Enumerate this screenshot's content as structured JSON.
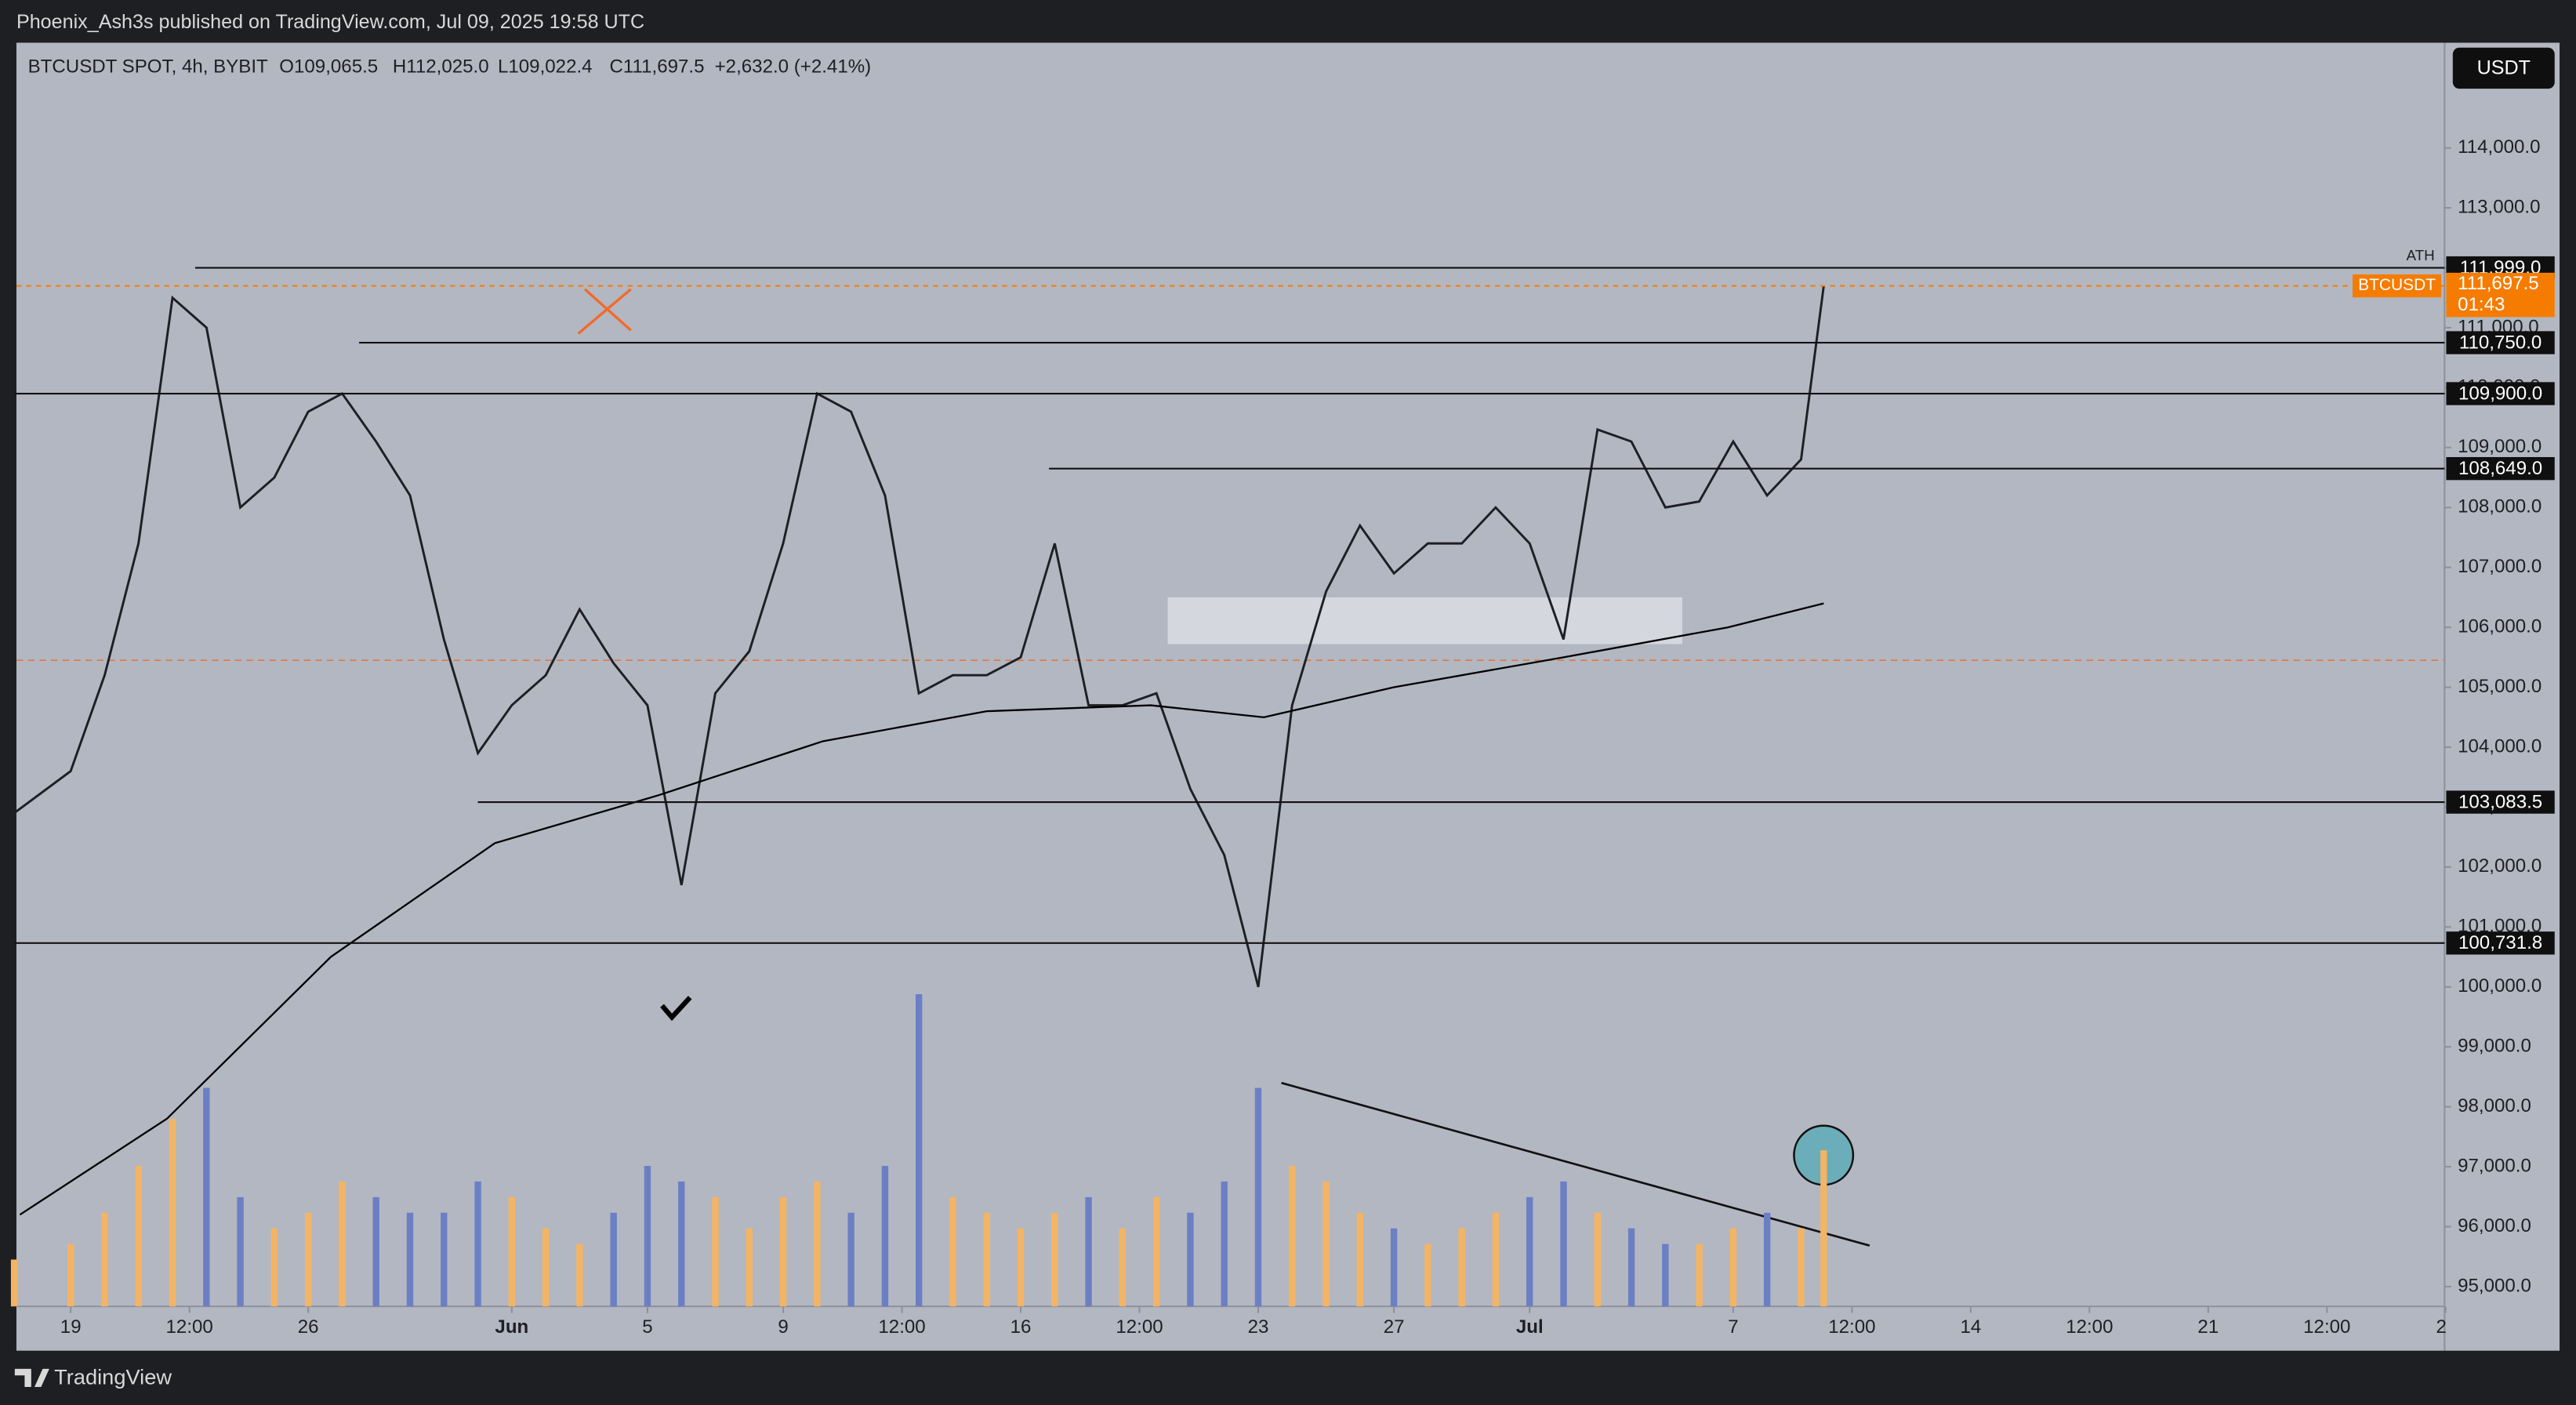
{
  "header": {
    "published": "Phoenix_Ash3s published on TradingView.com, Jul 09, 2025 19:58 UTC"
  },
  "footer": {
    "brand": "TradingView"
  },
  "chart_data": {
    "type": "line",
    "legend": {
      "symbol": "BTCUSDT SPOT, 4h, BYBIT",
      "open": "O109,065.5",
      "high": "H112,025.0",
      "low": "L109,022.4",
      "close": "C111,697.5",
      "change": "+2,632.0 (+2.41%)"
    },
    "currency": "USDT",
    "xlim": [
      -9.6,
      419.8
    ],
    "xticks": [
      {
        "value": 0,
        "label": "19"
      },
      {
        "value": 21,
        "label": "12:00"
      },
      {
        "value": 42,
        "label": "26"
      },
      {
        "value": 78,
        "label": "Jun"
      },
      {
        "value": 102,
        "label": "5"
      },
      {
        "value": 126,
        "label": "9"
      },
      {
        "value": 147,
        "label": "12:00"
      },
      {
        "value": 168,
        "label": "16"
      },
      {
        "value": 189,
        "label": "12:00"
      },
      {
        "value": 210,
        "label": "23"
      },
      {
        "value": 234,
        "label": "27"
      },
      {
        "value": 258,
        "label": "Jul"
      },
      {
        "value": 294,
        "label": "7"
      },
      {
        "value": 315,
        "label": "12:00"
      },
      {
        "value": 336,
        "label": "14"
      },
      {
        "value": 357,
        "label": "12:00"
      },
      {
        "value": 378,
        "label": "21"
      },
      {
        "value": 399,
        "label": "12:00"
      },
      {
        "value": 420,
        "label": "2"
      }
    ],
    "ylim": [
      94669,
      115755
    ],
    "yticks": [
      {
        "value": 95000,
        "label": "95,000.0"
      },
      {
        "value": 96000,
        "label": "96,000.0"
      },
      {
        "value": 97000,
        "label": "97,000.0"
      },
      {
        "value": 98000,
        "label": "98,000.0"
      },
      {
        "value": 99000,
        "label": "99,000.0"
      },
      {
        "value": 100000,
        "label": "100,000.0"
      },
      {
        "value": 101000,
        "label": "101,000.0"
      },
      {
        "value": 102000,
        "label": "102,000.0"
      },
      {
        "value": 103000,
        "label": "103,000.0"
      },
      {
        "value": 104000,
        "label": "104,000.0"
      },
      {
        "value": 105000,
        "label": "105,000.0"
      },
      {
        "value": 106000,
        "label": "106,000.0"
      },
      {
        "value": 107000,
        "label": "107,000.0"
      },
      {
        "value": 108000,
        "label": "108,000.0"
      },
      {
        "value": 109000,
        "label": "109,000.0"
      },
      {
        "value": 110000,
        "label": "110,000.0"
      },
      {
        "value": 111000,
        "label": "111,000.0"
      },
      {
        "value": 112000,
        "label": "112,000.0"
      },
      {
        "value": 113000,
        "label": "113,000.0"
      },
      {
        "value": 114000,
        "label": "114,000.0"
      }
    ],
    "series": [
      {
        "color": "#1e1f24",
        "x": [
          -10,
          0,
          6,
          12,
          18,
          24,
          30,
          36,
          42,
          48,
          54,
          60,
          66,
          72,
          78,
          84,
          90,
          96,
          102,
          108,
          114,
          120,
          126,
          132,
          138,
          144,
          150,
          156,
          162,
          168,
          174,
          180,
          186,
          192,
          198,
          204,
          210,
          216,
          222,
          228,
          234,
          240,
          246,
          252,
          258,
          264,
          270,
          276,
          282,
          288,
          294,
          300,
          306,
          310
        ],
        "values": [
          102900,
          103600,
          105200,
          107400,
          111500,
          111000,
          108000,
          108500,
          109600,
          109900,
          109100,
          108200,
          105800,
          103900,
          104700,
          105200,
          106300,
          105400,
          104700,
          101700,
          104900,
          105600,
          107400,
          109900,
          109600,
          108200,
          104900,
          105200,
          105200,
          105500,
          107400,
          104700,
          104700,
          104900,
          103300,
          102200,
          100000,
          104700,
          106600,
          107700,
          106900,
          107400,
          107400,
          108000,
          107400,
          105800,
          109300,
          109100,
          108000,
          108100,
          109100,
          108200,
          108800,
          111697.5
        ]
      },
      {
        "color": "#000000",
        "x": [
          -9,
          17,
          46,
          75,
          104,
          133,
          162,
          191,
          211,
          234,
          264,
          293,
          310
        ],
        "values": [
          96200,
          97800,
          100500,
          102400,
          103200,
          104100,
          104600,
          104700,
          104500,
          105000,
          105500,
          106000,
          106400
        ]
      }
    ],
    "volume": {
      "up_color": "#f3b464",
      "down_color": "#6b7fc4",
      "vlim": [
        0,
        100
      ],
      "values": [
        15,
        20,
        30,
        45,
        60,
        70,
        35,
        25,
        30,
        40,
        35,
        30,
        30,
        40,
        35,
        25,
        20,
        30,
        45,
        40,
        35,
        25,
        35,
        40,
        30,
        45,
        100,
        35,
        30,
        25,
        30,
        35,
        25,
        35,
        30,
        40,
        70,
        45,
        40,
        30,
        25,
        20,
        25,
        30,
        35,
        40,
        30,
        25,
        20,
        20,
        25,
        30,
        25,
        50
      ]
    },
    "levels": [
      {
        "value": 111999,
        "label": "111,999.0",
        "start": 22,
        "note": "ATH"
      },
      {
        "value": 110750,
        "label": "110,750.0",
        "start": 51
      },
      {
        "value": 109900,
        "label": "109,900.0",
        "start": -10
      },
      {
        "value": 108649,
        "label": "108,649.0",
        "start": 173
      },
      {
        "value": 103083.5,
        "label": "103,083.5",
        "start": 72
      },
      {
        "value": 100731.8,
        "label": "100,731.8",
        "start": -10
      }
    ],
    "last_price": {
      "value": 111697.5,
      "label": "111,697.5",
      "symbol": "BTCUSDT",
      "countdown": "01:43",
      "color": "#f57c00"
    },
    "poc_price": 105450,
    "zones": [
      {
        "x": [
          194,
          285
        ],
        "y": [
          105720,
          106500
        ]
      }
    ]
  }
}
